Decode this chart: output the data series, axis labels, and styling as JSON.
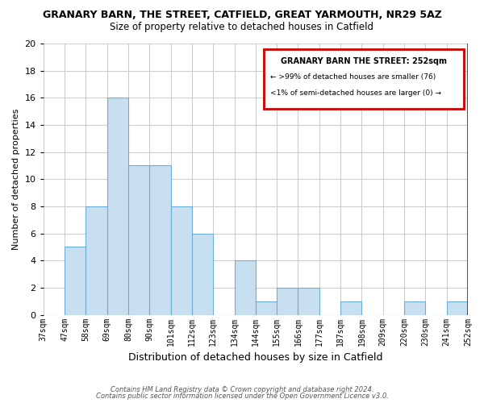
{
  "title": "GRANARY BARN, THE STREET, CATFIELD, GREAT YARMOUTH, NR29 5AZ",
  "subtitle": "Size of property relative to detached houses in Catfield",
  "xlabel": "Distribution of detached houses by size in Catfield",
  "ylabel": "Number of detached properties",
  "bin_labels": [
    "37sqm",
    "47sqm",
    "58sqm",
    "69sqm",
    "80sqm",
    "90sqm",
    "101sqm",
    "112sqm",
    "123sqm",
    "134sqm",
    "144sqm",
    "155sqm",
    "166sqm",
    "177sqm",
    "187sqm",
    "198sqm",
    "209sqm",
    "220sqm",
    "230sqm",
    "241sqm",
    "252sqm"
  ],
  "bar_heights": [
    0,
    5,
    8,
    16,
    11,
    11,
    8,
    6,
    0,
    4,
    1,
    2,
    2,
    0,
    1,
    0,
    0,
    1,
    0,
    1
  ],
  "bar_color": "#c8dff0",
  "bar_edge_color": "#6baed6",
  "highlight_bar_index": 19,
  "highlight_bar_edge_color": "#cc0000",
  "ylim": [
    0,
    20
  ],
  "yticks": [
    0,
    2,
    4,
    6,
    8,
    10,
    12,
    14,
    16,
    18,
    20
  ],
  "legend_title": "GRANARY BARN THE STREET: 252sqm",
  "legend_line1": "← >99% of detached houses are smaller (76)",
  "legend_line2": "<1% of semi-detached houses are larger (0) →",
  "legend_box_color": "#cc0000",
  "footnote1": "Contains HM Land Registry data © Crown copyright and database right 2024.",
  "footnote2": "Contains public sector information licensed under the Open Government Licence v3.0.",
  "background_color": "#ffffff",
  "grid_color": "#cccccc"
}
